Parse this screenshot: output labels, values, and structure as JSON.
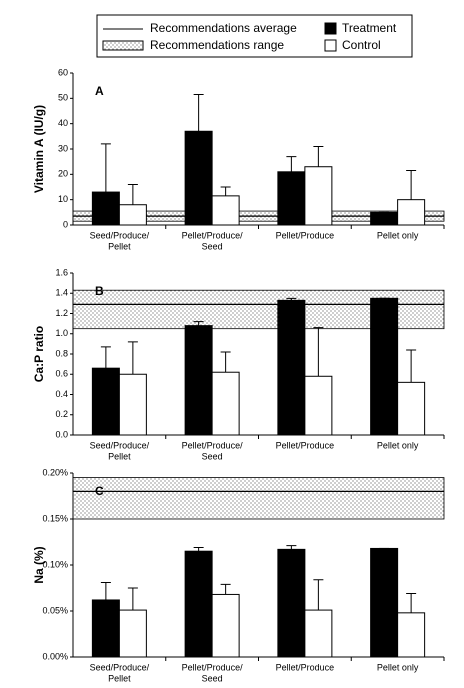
{
  "reference": {
    "average_label": "Recommendations average",
    "range_label": "Recommendations range"
  },
  "chart_data": [
    {
      "type": "bar",
      "panel": "A",
      "y_label": "Vitamin A (IU/g)",
      "categories": [
        [
          "Seed/Produce/",
          "Pellet"
        ],
        [
          "Pellet/Produce/",
          "Seed"
        ],
        [
          "Pellet/Produce"
        ],
        [
          "Pellet only"
        ]
      ],
      "series": [
        {
          "name": "Treatment",
          "color": "#000000",
          "values": [
            13,
            37,
            21,
            5
          ],
          "errors": [
            19,
            14.5,
            6,
            0
          ]
        },
        {
          "name": "Control",
          "color": "#ffffff",
          "values": [
            8,
            11.5,
            23,
            10
          ],
          "errors": [
            8,
            3.5,
            8,
            11.5
          ]
        }
      ],
      "recommendation_range": [
        1.5,
        5.5
      ],
      "recommendation_average": 3.5,
      "ylim": [
        0,
        60
      ],
      "yticks": [
        0,
        10,
        20,
        30,
        40,
        50,
        60
      ]
    },
    {
      "type": "bar",
      "panel": "B",
      "y_label": "Ca:P ratio",
      "categories": [
        [
          "Seed/Produce/",
          "Pellet"
        ],
        [
          "Pellet/Produce/",
          "Seed"
        ],
        [
          "Pellet/Produce"
        ],
        [
          "Pellet only"
        ]
      ],
      "series": [
        {
          "color": "#000000",
          "values": [
            0.66,
            1.08,
            1.33,
            1.35
          ],
          "errors": [
            0.21,
            0.04,
            0.02,
            0
          ]
        },
        {
          "color": "#ffffff",
          "values": [
            0.6,
            0.62,
            0.58,
            0.52
          ],
          "errors": [
            0.32,
            0.2,
            0.48,
            0.32
          ]
        }
      ],
      "recommendation_range": [
        1.05,
        1.43
      ],
      "recommendation_average": 1.29,
      "ylim": [
        0,
        1.6
      ],
      "yticks": [
        {
          "value": 0,
          "label": "0.0"
        },
        0.2,
        0.4,
        0.6,
        0.8,
        {
          "value": 1,
          "label": "1.0"
        },
        1.2,
        1.4,
        1.6
      ]
    },
    {
      "type": "bar",
      "panel": "C",
      "y_label": "Na (%)",
      "categories": [
        [
          "Seed/Produce/",
          "Pellet"
        ],
        [
          "Pellet/Produce/",
          "Seed"
        ],
        [
          "Pellet/Produce"
        ],
        [
          "Pellet only"
        ]
      ],
      "series": [
        {
          "color": "#000000",
          "values": [
            0.062,
            0.115,
            0.117,
            0.118
          ],
          "errors": [
            0.019,
            0.004,
            0.004,
            0
          ]
        },
        {
          "color": "#ffffff",
          "values": [
            0.051,
            0.068,
            0.051,
            0.048
          ],
          "errors": [
            0.024,
            0.011,
            0.033,
            0.021
          ]
        }
      ],
      "recommendation_range": [
        0.15,
        0.195
      ],
      "recommendation_average": 0.18,
      "ylim": [
        0,
        0.2
      ],
      "yticks": [
        {
          "value": 0,
          "label": "0.00%"
        },
        {
          "value": 0.05,
          "label": "0.05%"
        },
        {
          "value": 0.1,
          "label": "0.10%"
        },
        {
          "value": 0.15,
          "label": "0.15%"
        },
        {
          "value": 0.2,
          "label": "0.20%"
        }
      ]
    }
  ]
}
